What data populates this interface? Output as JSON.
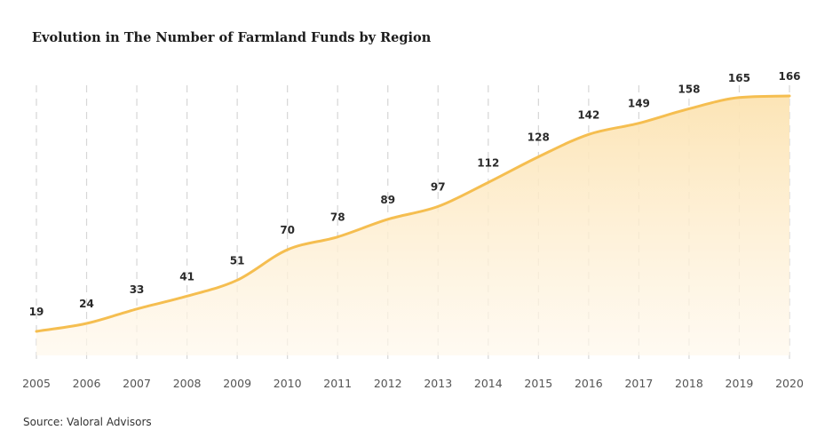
{
  "title": "Evolution in The Number of Farmland Funds by Region",
  "source": "Source: Valoral Advisors",
  "colors": {
    "line": "#F5BE50",
    "fill_top": "#FCE3B2",
    "fill_bottom": "#FFF8EC",
    "grid": "#D6D6D6"
  },
  "chart_data": {
    "type": "area",
    "title": "Evolution in The Number of Farmland Funds by Region",
    "xlabel": "",
    "ylabel": "",
    "x": [
      "2005",
      "2006",
      "2007",
      "2008",
      "2009",
      "2010",
      "2011",
      "2012",
      "2013",
      "2014",
      "2015",
      "2016",
      "2017",
      "2018",
      "2019",
      "2020"
    ],
    "series": [
      {
        "values": [
          19,
          24,
          33,
          41,
          51,
          70,
          78,
          89,
          97,
          112,
          128,
          142,
          149,
          158,
          165,
          166
        ]
      }
    ],
    "data_labels": [
      "19",
      "24",
      "33",
      "41",
      "51",
      "70",
      "78",
      "89",
      "97",
      "112",
      "128",
      "142",
      "149",
      "158",
      "165",
      "166"
    ],
    "grid": "vertical-dashed",
    "legend": "none"
  }
}
